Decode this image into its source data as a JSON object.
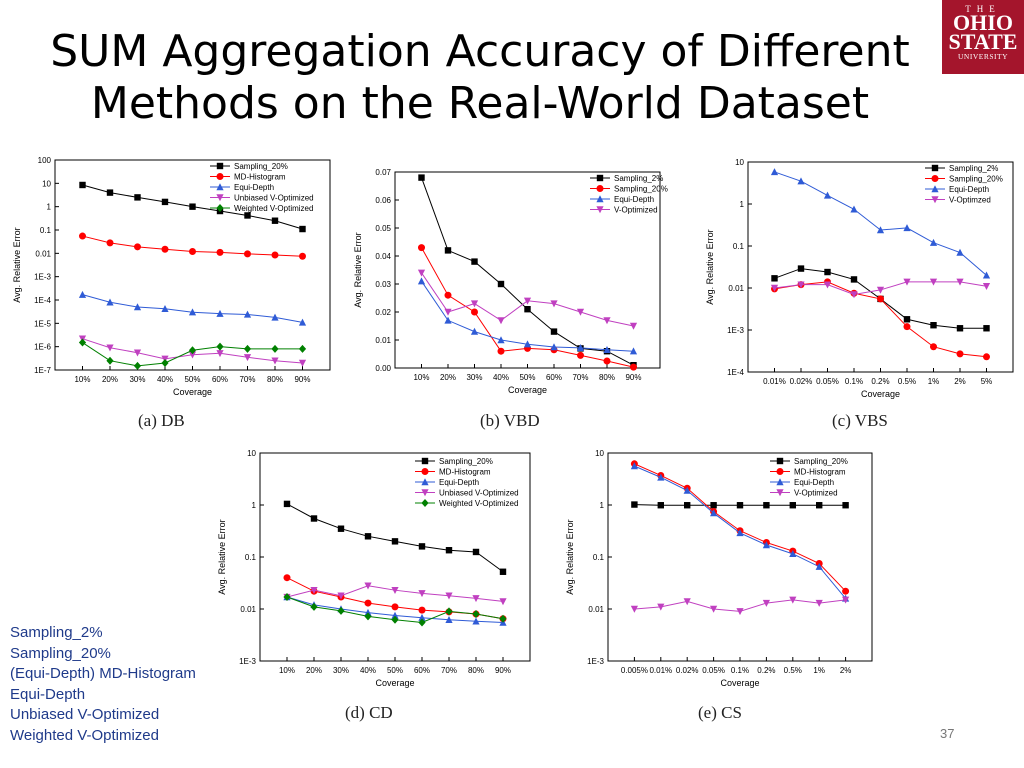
{
  "slide": {
    "title_line1": "SUM Aggregation Accuracy of Different",
    "title_line2": "Methods on the Real-World Dataset",
    "page_number": "37",
    "logo": {
      "line1": "THE",
      "line2": "OHIO",
      "line3": "STATE",
      "line4": "UNIVERSITY"
    },
    "captions": [
      "(a) DB",
      "(b) VBD",
      "(c) VBS",
      "(d) CD",
      "(e) CS"
    ],
    "side_legend": [
      "Sampling_2%",
      "Sampling_20%",
      "(Equi-Depth) MD-Histogram",
      "Equi-Depth",
      "Unbiased V-Optimized",
      "Weighted V-Optimized"
    ]
  },
  "colors": {
    "sampling": "#000000",
    "md_histogram": "#ff0000",
    "equi_depth": "#2f5bd6",
    "unbiased": "#c040c0",
    "weighted": "#008000",
    "side_legend_text": "#1f3a8a"
  },
  "chart_data": [
    {
      "type": "line",
      "id": "db",
      "xlabel": "Coverage",
      "ylabel": "Avg. Relative Error",
      "yscale": "log",
      "ylim": [
        1e-07,
        100
      ],
      "yticks": [
        "1E-7",
        "1E-6",
        "1E-5",
        "1E-4",
        "1E-3",
        "0.01",
        "0.1",
        "1",
        "10",
        "100"
      ],
      "categories": [
        "10%",
        "20%",
        "30%",
        "40%",
        "50%",
        "60%",
        "70%",
        "80%",
        "90%"
      ],
      "legend_position": "top-right",
      "series": [
        {
          "name": "Sampling_20%",
          "marker": "square",
          "color": "#000000",
          "values": [
            8.5,
            4,
            2.5,
            1.6,
            1.0,
            0.65,
            0.42,
            0.25,
            0.11
          ]
        },
        {
          "name": "MD-Histogram",
          "marker": "circle",
          "color": "#ff0000",
          "values": [
            0.055,
            0.028,
            0.019,
            0.015,
            0.012,
            0.011,
            0.0095,
            0.0085,
            0.0075
          ]
        },
        {
          "name": "Equi-Depth",
          "marker": "triangle-up",
          "color": "#2f5bd6",
          "values": [
            0.00017,
            8e-05,
            5e-05,
            4.2e-05,
            3e-05,
            2.6e-05,
            2.4e-05,
            1.8e-05,
            1.1e-05
          ]
        },
        {
          "name": "Unbiased V-Optimized",
          "marker": "triangle-down",
          "color": "#c040c0",
          "values": [
            2.2e-06,
            9e-07,
            5.5e-07,
            3e-07,
            4.5e-07,
            5.2e-07,
            3.5e-07,
            2.5e-07,
            2e-07
          ]
        },
        {
          "name": "Weighted V-Optimized",
          "marker": "diamond",
          "color": "#008000",
          "values": [
            1.5e-06,
            2.5e-07,
            1.5e-07,
            2e-07,
            7e-07,
            1e-06,
            8e-07,
            8e-07,
            8e-07
          ]
        }
      ]
    },
    {
      "type": "line",
      "id": "vbd",
      "xlabel": "Coverage",
      "ylabel": "Avg. Relative Error",
      "yscale": "linear",
      "ylim": [
        0,
        0.07
      ],
      "yticks": [
        "0.00",
        "0.01",
        "0.02",
        "0.03",
        "0.04",
        "0.05",
        "0.06",
        "0.07"
      ],
      "categories": [
        "10%",
        "20%",
        "30%",
        "40%",
        "50%",
        "60%",
        "70%",
        "80%",
        "90%"
      ],
      "legend_position": "top-right",
      "series": [
        {
          "name": "Sampling_2%",
          "marker": "square",
          "color": "#000000",
          "values": [
            0.068,
            0.042,
            0.038,
            0.03,
            0.021,
            0.013,
            0.007,
            0.006,
            0.001
          ]
        },
        {
          "name": "Sampling_20%",
          "marker": "circle",
          "color": "#ff0000",
          "values": [
            0.043,
            0.026,
            0.02,
            0.006,
            0.007,
            0.0065,
            0.0045,
            0.0025,
            0.0003
          ]
        },
        {
          "name": "Equi-Depth",
          "marker": "triangle-up",
          "color": "#2f5bd6",
          "values": [
            0.031,
            0.017,
            0.013,
            0.01,
            0.0085,
            0.0075,
            0.0072,
            0.0065,
            0.006
          ]
        },
        {
          "name": "V-Optimized",
          "marker": "triangle-down",
          "color": "#c040c0",
          "values": [
            0.034,
            0.02,
            0.023,
            0.017,
            0.024,
            0.023,
            0.02,
            0.017,
            0.015
          ]
        }
      ]
    },
    {
      "type": "line",
      "id": "vbs",
      "xlabel": "Coverage",
      "ylabel": "Avg. Relative Error",
      "yscale": "log",
      "ylim": [
        0.0001,
        10
      ],
      "yticks": [
        "1E-4",
        "1E-3",
        "0.01",
        "0.1",
        "1",
        "10"
      ],
      "categories": [
        "0.01%",
        "0.02%",
        "0.05%",
        "0.1%",
        "0.2%",
        "0.5%",
        "1%",
        "2%",
        "5%"
      ],
      "legend_position": "top-right",
      "series": [
        {
          "name": "Sampling_2%",
          "marker": "square",
          "color": "#000000",
          "values": [
            0.017,
            0.029,
            0.024,
            0.016,
            0.0055,
            0.0018,
            0.0013,
            0.0011,
            0.0011
          ]
        },
        {
          "name": "Sampling_20%",
          "marker": "circle",
          "color": "#ff0000",
          "values": [
            0.0095,
            0.012,
            0.014,
            0.0075,
            0.0055,
            0.0012,
            0.0004,
            0.00027,
            0.00023
          ]
        },
        {
          "name": "Equi-Depth",
          "marker": "triangle-up",
          "color": "#2f5bd6",
          "values": [
            5.8,
            3.5,
            1.6,
            0.75,
            0.24,
            0.27,
            0.12,
            0.07,
            0.02
          ]
        },
        {
          "name": "V-Optimzed",
          "marker": "triangle-down",
          "color": "#c040c0",
          "values": [
            0.01,
            0.012,
            0.012,
            0.007,
            0.009,
            0.014,
            0.014,
            0.014,
            0.011
          ]
        }
      ]
    },
    {
      "type": "line",
      "id": "cd",
      "xlabel": "Coverage",
      "ylabel": "Avg. Relative Error",
      "yscale": "log",
      "ylim": [
        0.001,
        10
      ],
      "yticks": [
        "1E-3",
        "0.01",
        "0.1",
        "1",
        "10"
      ],
      "categories": [
        "10%",
        "20%",
        "30%",
        "40%",
        "50%",
        "60%",
        "70%",
        "80%",
        "90%"
      ],
      "legend_position": "top-right",
      "series": [
        {
          "name": "Sampling_20%",
          "marker": "square",
          "color": "#000000",
          "values": [
            1.05,
            0.55,
            0.35,
            0.25,
            0.2,
            0.16,
            0.135,
            0.125,
            0.052
          ]
        },
        {
          "name": "MD-Histogram",
          "marker": "circle",
          "color": "#ff0000",
          "values": [
            0.04,
            0.022,
            0.017,
            0.013,
            0.011,
            0.0095,
            0.0088,
            0.008,
            0.0065
          ]
        },
        {
          "name": "Equi-Depth",
          "marker": "triangle-up",
          "color": "#2f5bd6",
          "values": [
            0.017,
            0.012,
            0.01,
            0.0085,
            0.0075,
            0.0068,
            0.0062,
            0.0058,
            0.0055
          ]
        },
        {
          "name": "Unbiased V-Optimized",
          "marker": "triangle-down",
          "color": "#c040c0",
          "values": [
            0.017,
            0.023,
            0.018,
            0.028,
            0.023,
            0.02,
            0.018,
            0.016,
            0.014
          ]
        },
        {
          "name": "Weighted V-Optimized",
          "marker": "diamond",
          "color": "#008000",
          "values": [
            0.017,
            0.011,
            0.0092,
            0.0072,
            0.0062,
            0.0055,
            0.009,
            0.008,
            0.0065
          ]
        }
      ]
    },
    {
      "type": "line",
      "id": "cs",
      "xlabel": "Coverage",
      "ylabel": "Avg. Relative Error",
      "yscale": "log",
      "ylim": [
        0.001,
        10
      ],
      "yticks": [
        "1E-3",
        "0.01",
        "0.1",
        "1",
        "10"
      ],
      "categories": [
        "0.005%",
        "0.01%",
        "0.02%",
        "0.05%",
        "0.1%",
        "0.2%",
        "0.5%",
        "1%",
        "2%"
      ],
      "legend_position": "top-right",
      "series": [
        {
          "name": "Sampling_20%",
          "marker": "square",
          "color": "#000000",
          "values": [
            1.02,
            0.99,
            0.99,
            0.99,
            0.99,
            0.99,
            0.99,
            0.99,
            0.99
          ]
        },
        {
          "name": "MD-Histogram",
          "marker": "circle",
          "color": "#ff0000",
          "values": [
            6.2,
            3.7,
            2.1,
            0.75,
            0.32,
            0.19,
            0.13,
            0.075,
            0.022
          ]
        },
        {
          "name": "Equi-Depth",
          "marker": "triangle-up",
          "color": "#2f5bd6",
          "values": [
            5.6,
            3.4,
            1.9,
            0.7,
            0.29,
            0.17,
            0.115,
            0.065,
            0.016
          ]
        },
        {
          "name": "V-Optimized",
          "marker": "triangle-down",
          "color": "#c040c0",
          "values": [
            0.01,
            0.011,
            0.014,
            0.01,
            0.009,
            0.013,
            0.015,
            0.013,
            0.015
          ]
        }
      ]
    }
  ]
}
